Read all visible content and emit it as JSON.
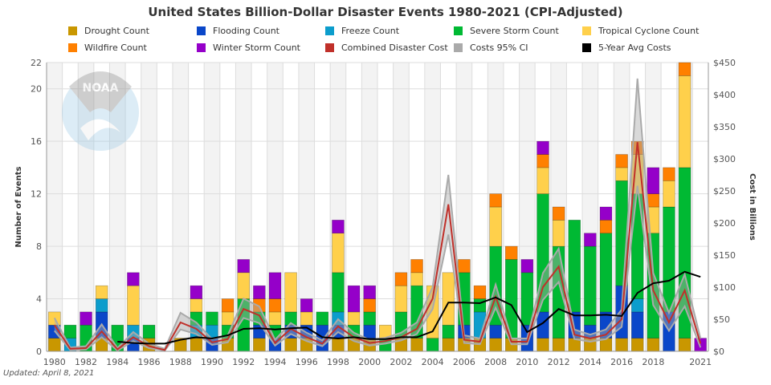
{
  "chart_data": {
    "type": "bar",
    "title": "United States Billion-Dollar Disaster Events 1980-2021 (CPI-Adjusted)",
    "ylabel": "Number of Events",
    "y2label": "Cost in Billions",
    "ylim": [
      0,
      22
    ],
    "y2lim": [
      0,
      450
    ],
    "yticks": [
      0,
      4,
      8,
      12,
      16,
      20,
      22
    ],
    "y2ticks": [
      "$0",
      "$50",
      "$100",
      "$150",
      "$200",
      "$250",
      "$300",
      "$350",
      "$400",
      "$450"
    ],
    "xticks": [
      "1980",
      "1982",
      "1984",
      "1986",
      "1988",
      "1990",
      "1992",
      "1994",
      "1996",
      "1998",
      "2000",
      "2002",
      "2004",
      "2006",
      "2008",
      "2010",
      "2012",
      "2014",
      "2016",
      "2018",
      "2021"
    ],
    "grid": true,
    "legend_placement": "top",
    "years": [
      1980,
      1981,
      1982,
      1983,
      1984,
      1985,
      1986,
      1987,
      1988,
      1989,
      1990,
      1991,
      1992,
      1993,
      1994,
      1995,
      1996,
      1997,
      1998,
      1999,
      2000,
      2001,
      2002,
      2003,
      2004,
      2005,
      2006,
      2007,
      2008,
      2009,
      2010,
      2011,
      2012,
      2013,
      2014,
      2015,
      2016,
      2017,
      2018,
      2019,
      2020,
      2021
    ],
    "series": [
      {
        "name": "Drought Count",
        "color": "#c99700",
        "kind": "bar",
        "values": [
          1,
          0,
          0,
          1,
          0,
          0,
          1,
          0,
          1,
          1,
          0,
          1,
          0,
          1,
          0,
          1,
          1,
          0,
          1,
          1,
          1,
          0,
          1,
          1,
          0,
          1,
          1,
          1,
          1,
          1,
          0,
          1,
          1,
          1,
          1,
          1,
          1,
          1,
          1,
          0,
          1,
          0
        ]
      },
      {
        "name": "Flooding Count",
        "color": "#0a47c9",
        "kind": "bar",
        "values": [
          1,
          0,
          0,
          2,
          0,
          1,
          0,
          0,
          0,
          0,
          1,
          0,
          0,
          1,
          1,
          1,
          1,
          2,
          1,
          0,
          1,
          0,
          0,
          0,
          0,
          0,
          1,
          0,
          1,
          0,
          2,
          2,
          0,
          2,
          1,
          2,
          4,
          2,
          0,
          3,
          0,
          0
        ]
      },
      {
        "name": "Freeze Count",
        "color": "#0c9dcc",
        "kind": "bar",
        "values": [
          0,
          1,
          0,
          1,
          0,
          1,
          0,
          0,
          0,
          1,
          1,
          0,
          0,
          0,
          0,
          0,
          0,
          0,
          1,
          0,
          0,
          0,
          0,
          0,
          0,
          0,
          0,
          2,
          0,
          0,
          0,
          0,
          0,
          0,
          0,
          0,
          0,
          1,
          0,
          0,
          0,
          0
        ]
      },
      {
        "name": "Severe Storm Count",
        "color": "#00b933",
        "kind": "bar",
        "values": [
          0,
          1,
          2,
          0,
          2,
          0,
          1,
          0,
          0,
          1,
          1,
          1,
          4,
          1,
          1,
          1,
          0,
          1,
          3,
          1,
          1,
          1,
          2,
          4,
          1,
          1,
          4,
          1,
          6,
          6,
          4,
          9,
          7,
          7,
          6,
          6,
          8,
          8,
          8,
          8,
          13,
          0
        ]
      },
      {
        "name": "Tropical Cyclone Count",
        "color": "#ffd04b",
        "kind": "bar",
        "values": [
          1,
          0,
          0,
          1,
          0,
          3,
          0,
          0,
          0,
          1,
          0,
          1,
          2,
          0,
          1,
          3,
          1,
          0,
          3,
          1,
          0,
          1,
          2,
          1,
          4,
          4,
          0,
          0,
          3,
          0,
          0,
          2,
          2,
          0,
          0,
          0,
          1,
          3,
          2,
          2,
          7,
          0
        ]
      },
      {
        "name": "Wildfire Count",
        "color": "#ff8000",
        "kind": "bar",
        "values": [
          0,
          0,
          0,
          0,
          0,
          0,
          0,
          0,
          0,
          0,
          0,
          1,
          0,
          1,
          1,
          0,
          0,
          0,
          0,
          0,
          1,
          0,
          1,
          1,
          0,
          0,
          1,
          1,
          1,
          1,
          0,
          1,
          1,
          0,
          0,
          1,
          1,
          1,
          1,
          1,
          1,
          0
        ]
      },
      {
        "name": "Winter Storm Count",
        "color": "#9500c9",
        "kind": "bar",
        "values": [
          0,
          0,
          1,
          0,
          0,
          1,
          0,
          0,
          0,
          1,
          0,
          0,
          1,
          1,
          2,
          0,
          1,
          0,
          1,
          2,
          1,
          0,
          0,
          0,
          0,
          0,
          0,
          0,
          0,
          0,
          1,
          1,
          0,
          0,
          1,
          1,
          0,
          0,
          2,
          0,
          0,
          1
        ]
      },
      {
        "name": "Combined Disaster Cost",
        "color": "#c0302a",
        "kind": "line",
        "values": [
          41,
          4,
          5,
          31,
          3,
          22,
          8,
          2,
          45,
          35,
          14,
          19,
          66,
          56,
          13,
          35,
          22,
          12,
          39,
          22,
          13,
          16,
          22,
          35,
          82,
          229,
          18,
          15,
          85,
          15,
          15,
          100,
          132,
          26,
          20,
          26,
          50,
          326,
          95,
          45,
          95,
          12
        ]
      },
      {
        "name": "Costs 95% CI",
        "color": "#aaaaaa",
        "kind": "band",
        "low": [
          32,
          2,
          3,
          22,
          1,
          16,
          5,
          1,
          34,
          27,
          10,
          14,
          52,
          44,
          9,
          27,
          16,
          8,
          30,
          16,
          9,
          12,
          17,
          27,
          66,
          182,
          13,
          11,
          68,
          11,
          11,
          80,
          108,
          19,
          15,
          19,
          38,
          258,
          72,
          32,
          70,
          6
        ],
        "high": [
          52,
          6,
          8,
          42,
          5,
          30,
          12,
          4,
          60,
          45,
          19,
          25,
          82,
          70,
          18,
          44,
          29,
          17,
          50,
          29,
          18,
          21,
          29,
          45,
          100,
          275,
          25,
          20,
          104,
          20,
          20,
          122,
          160,
          34,
          26,
          34,
          65,
          425,
          122,
          60,
          120,
          20
        ]
      },
      {
        "name": "5-Year Avg Costs",
        "color": "#000000",
        "kind": "line",
        "start_year": 1984,
        "values": [
          15,
          13,
          12,
          12,
          18,
          22,
          20,
          25,
          35,
          36,
          34,
          36,
          37,
          22,
          20,
          22,
          19,
          19,
          22,
          22,
          31,
          76,
          76,
          75,
          84,
          72,
          30,
          44,
          66,
          56,
          56,
          57,
          55,
          91,
          106,
          110,
          124,
          116
        ]
      }
    ],
    "annotations": {
      "updated": "Updated: April 8, 2021",
      "watermark": "NOAA"
    }
  }
}
